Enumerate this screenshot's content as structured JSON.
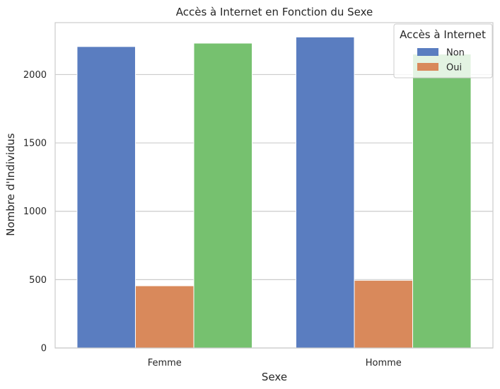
{
  "chart_data": {
    "type": "bar",
    "title": "Accès à Internet en Fonction du Sexe",
    "xlabel": "Sexe",
    "ylabel": "Nombre d'Individus",
    "categories": [
      "Femme",
      "Homme"
    ],
    "series": [
      {
        "name": "Non",
        "color": "#5a7dc0",
        "values": [
          2205,
          2275
        ]
      },
      {
        "name": "Oui",
        "color": "#d9895b",
        "values": [
          455,
          495
        ]
      },
      {
        "color": "#76c16f",
        "values": [
          2230,
          2150
        ]
      }
    ],
    "ylim": [
      0,
      2380
    ],
    "yticks": [
      0,
      500,
      1000,
      1500,
      2000
    ],
    "grid": true,
    "legend": {
      "title": "Accès à Internet",
      "position": "top-right"
    }
  }
}
